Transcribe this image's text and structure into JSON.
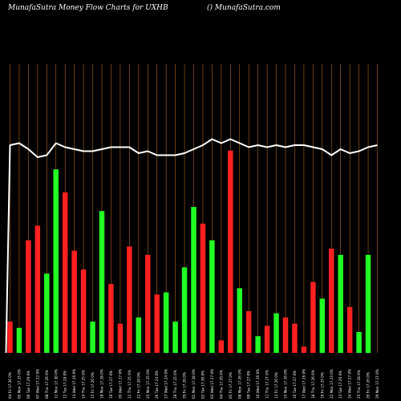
{
  "header": {
    "title": "MunafaSutra  Money Flow  Charts for UXHB",
    "site": "() MunafaSutra.com"
  },
  "colors": {
    "background": "#000000",
    "grid": "#b3661a",
    "up_bar": "#22ff22",
    "down_bar": "#ff2020",
    "line": "#ffffff"
  },
  "chart_data": {
    "type": "bar",
    "title": "MunafaSutra  Money Flow  Charts for UXHB",
    "xlabel": "",
    "ylabel": "",
    "grid": true,
    "ylim": [
      0,
      100
    ],
    "categories": [
      "04 Fri 17.26 0%",
      "05 Mon 17.25 0%",
      "06 Tue 17.29 0%",
      "07 Wed 17.22 0%",
      "08 Thu 17.26 0%",
      "11 Mon 17.30 0%",
      "12 Tue 17.28 0%",
      "13 Wed 17.26 0%",
      "14 Thu 17.25 0%",
      "15 Fri 17.26 0%",
      "18 Mon 17.28 0%",
      "19 Tue 17.27 0%",
      "20 Wed 17.27 0%",
      "21 Thu 17.25 0%",
      "22 Fri 17.26 0%",
      "25 Mon 17.25 0%",
      "26 Tue 17.24 0%",
      "27 Wed 17.24 0%",
      "28 Thu 17.25 0%",
      "29 Fri 17.26 0%",
      "01 Mon 17.28 0%",
      "02 Tue 17.30 0%",
      "03 Wed 17.27 0%",
      "04 Thu 17.29 0%",
      "05 Fri 17.27 0%",
      "08 Mon 17.26 0%",
      "09 Tue 17.27 0%",
      "10 Wed 17.26 0%",
      "11 Thu 17.27 0%",
      "12 Fri 17.26 0%",
      "15 Mon 17.26 0%",
      "16 Tue 17.27 0%",
      "17 Wed 17.26 0%",
      "18 Thu 17.26 0%",
      "19 Fri 17.25 0%",
      "22 Mon 17.23 0%",
      "23 Tue 17.26 0%",
      "24 Wed 17.27 0%",
      "25 Thu 17.28 0%",
      "26 Fri 17.26 0%",
      "29 Mon 17.27 0%"
    ],
    "series": [
      {
        "values": [
          15,
          12,
          54,
          61,
          38,
          88,
          77,
          49,
          40,
          15,
          68,
          33,
          14,
          51,
          17,
          47,
          28,
          29,
          15,
          41,
          70,
          62,
          54,
          6,
          97,
          31,
          20,
          8,
          13,
          19,
          17,
          14,
          3,
          34,
          26,
          50,
          47,
          22,
          10,
          47,
          0
        ],
        "direction": [
          "down",
          "up",
          "down",
          "down",
          "up",
          "up",
          "down",
          "down",
          "down",
          "up",
          "up",
          "down",
          "down",
          "down",
          "up",
          "down",
          "down",
          "up",
          "up",
          "up",
          "up",
          "down",
          "up",
          "down",
          "down",
          "up",
          "down",
          "up",
          "down",
          "up",
          "down",
          "down",
          "down",
          "down",
          "up",
          "down",
          "up",
          "down",
          "up",
          "up",
          "up"
        ]
      },
      {
        "type": "line",
        "values": [
          98,
          99,
          96,
          92,
          93,
          99,
          97,
          96,
          95,
          95,
          96,
          97,
          97,
          97,
          94,
          95,
          93,
          93,
          93,
          94,
          96,
          98,
          101,
          99,
          101,
          99,
          97,
          98,
          97,
          98,
          97,
          98,
          98,
          97,
          96,
          93,
          96,
          94,
          95,
          97,
          98
        ]
      }
    ]
  }
}
